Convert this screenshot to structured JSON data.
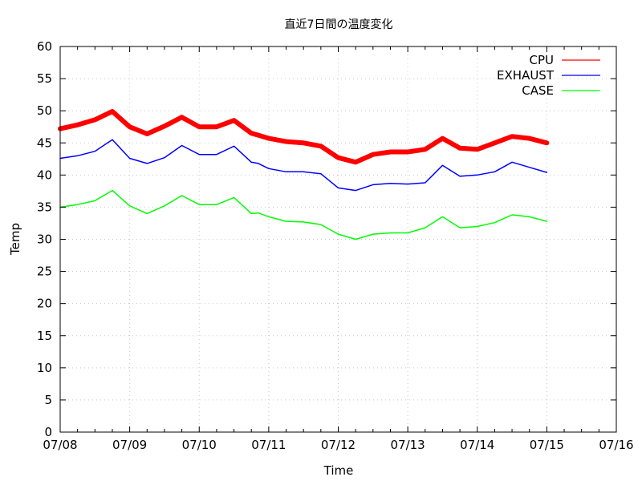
{
  "chart_data": {
    "type": "line",
    "title": "直近7日間の温度変化",
    "xlabel": "Time",
    "ylabel": "Temp",
    "xlim": [
      "07/08",
      "07/16"
    ],
    "ylim": [
      0,
      60
    ],
    "grid": true,
    "legend_position": "top-right",
    "x_tick_labels": [
      "07/08",
      "07/09",
      "07/10",
      "07/11",
      "07/12",
      "07/13",
      "07/14",
      "07/15",
      "07/16"
    ],
    "y_tick_labels": [
      "0",
      "5",
      "10",
      "15",
      "20",
      "25",
      "30",
      "35",
      "40",
      "45",
      "50",
      "55",
      "60"
    ],
    "x": [
      0.0,
      0.25,
      0.5,
      0.75,
      1.0,
      1.25,
      1.5,
      1.75,
      2.0,
      2.25,
      2.5,
      2.75,
      2.85,
      3.0,
      3.25,
      3.5,
      3.75,
      4.0,
      4.25,
      4.5,
      4.75,
      5.0,
      5.25,
      5.5,
      5.75,
      6.0,
      6.25,
      6.5,
      6.75,
      7.0
    ],
    "series": [
      {
        "name": "CPU",
        "color": "#ff0000",
        "line_width": 6,
        "values": [
          47.2,
          47.8,
          48.6,
          49.9,
          47.5,
          46.4,
          47.6,
          49.0,
          47.5,
          47.5,
          48.5,
          46.5,
          46.2,
          45.7,
          45.2,
          45.0,
          44.5,
          42.7,
          42.0,
          43.2,
          43.6,
          43.6,
          44.0,
          45.7,
          44.2,
          44.0,
          45.0,
          46.0,
          45.7,
          45.0
        ]
      },
      {
        "name": "EXHAUST",
        "color": "#0000ff",
        "line_width": 1.5,
        "values": [
          42.6,
          43.0,
          43.7,
          45.5,
          42.6,
          41.8,
          42.7,
          44.6,
          43.2,
          43.2,
          44.5,
          42.0,
          41.8,
          41.0,
          40.5,
          40.5,
          40.2,
          38.0,
          37.6,
          38.5,
          38.7,
          38.6,
          38.8,
          41.5,
          39.8,
          40.0,
          40.5,
          42.0,
          41.2,
          40.4
        ]
      },
      {
        "name": "CASE",
        "color": "#00ff00",
        "line_width": 1.5,
        "values": [
          35.0,
          35.4,
          36.0,
          37.6,
          35.2,
          34.0,
          35.2,
          36.8,
          35.4,
          35.4,
          36.5,
          34.0,
          34.1,
          33.5,
          32.8,
          32.7,
          32.3,
          30.8,
          30.0,
          30.8,
          31.0,
          31.0,
          31.8,
          33.5,
          31.8,
          32.0,
          32.6,
          33.8,
          33.5,
          32.8
        ]
      }
    ]
  }
}
